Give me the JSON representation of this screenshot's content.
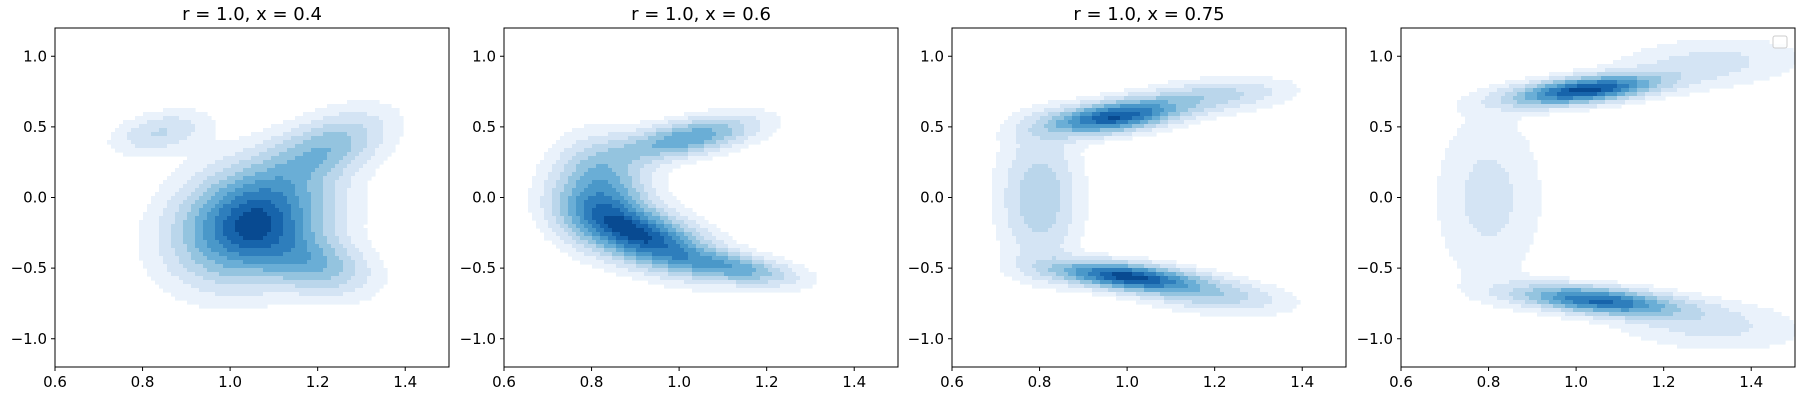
{
  "figure": {
    "colormap": [
      "#eaf2fb",
      "#d4e4f4",
      "#bad6eb",
      "#94c4df",
      "#6aaed6",
      "#4a98c9",
      "#2e7ebc",
      "#1764ab",
      "#084a91"
    ],
    "axis_color": "#000000"
  },
  "chart_data": [
    {
      "type": "heatmap",
      "subtype": "kde-contour",
      "title": "r = 1.0, x = 0.4",
      "xlim": [
        0.6,
        1.5
      ],
      "ylim": [
        -1.2,
        1.2
      ],
      "xticks": [
        0.6,
        0.8,
        1.0,
        1.2,
        1.4
      ],
      "xtick_labels": [
        "0.6",
        "0.8",
        "1.0",
        "1.2",
        "1.4"
      ],
      "yticks": [
        -1.0,
        -0.5,
        0.0,
        0.5,
        1.0
      ],
      "ytick_labels": [
        "−1.0",
        "−0.5",
        "0.0",
        "0.5",
        "1.0"
      ],
      "grid": false,
      "legend": false,
      "density_components": [
        {
          "x": 0.84,
          "y": 0.46,
          "sx": 0.07,
          "sy": 0.1,
          "corr": 0.35,
          "w": 0.25
        },
        {
          "x": 1.05,
          "y": -0.18,
          "sx": 0.11,
          "sy": 0.26,
          "corr": 0.2,
          "w": 1.0
        },
        {
          "x": 1.22,
          "y": 0.35,
          "sx": 0.09,
          "sy": 0.17,
          "corr": 0.5,
          "w": 0.42
        },
        {
          "x": 1.2,
          "y": -0.48,
          "sx": 0.08,
          "sy": 0.14,
          "corr": -0.3,
          "w": 0.4
        }
      ]
    },
    {
      "type": "heatmap",
      "subtype": "kde-contour",
      "title": "r = 1.0, x = 0.6",
      "xlim": [
        0.6,
        1.5
      ],
      "ylim": [
        -1.2,
        1.2
      ],
      "xticks": [
        0.6,
        0.8,
        1.0,
        1.2,
        1.4
      ],
      "xtick_labels": [
        "0.6",
        "0.8",
        "1.0",
        "1.2",
        "1.4"
      ],
      "yticks": [
        -1.0,
        -0.5,
        0.0,
        0.5,
        1.0
      ],
      "ytick_labels": [
        "−1.0",
        "−0.5",
        "0.0",
        "0.5",
        "1.0"
      ],
      "grid": false,
      "legend": false,
      "density_components": [
        {
          "x": 0.92,
          "y": -0.28,
          "sx": 0.1,
          "sy": 0.16,
          "corr": -0.55,
          "w": 1.0
        },
        {
          "x": 1.13,
          "y": -0.5,
          "sx": 0.09,
          "sy": 0.08,
          "corr": -0.5,
          "w": 0.55
        },
        {
          "x": 1.02,
          "y": 0.42,
          "sx": 0.1,
          "sy": 0.1,
          "corr": 0.55,
          "w": 0.65
        },
        {
          "x": 0.82,
          "y": 0.05,
          "sx": 0.07,
          "sy": 0.22,
          "corr": 0.0,
          "w": 0.65
        }
      ]
    },
    {
      "type": "heatmap",
      "subtype": "kde-contour",
      "title": "r = 1.0, x = 0.75",
      "xlim": [
        0.6,
        1.5
      ],
      "ylim": [
        -1.2,
        1.2
      ],
      "xticks": [
        0.6,
        0.8,
        1.0,
        1.2,
        1.4
      ],
      "xtick_labels": [
        "0.6",
        "0.8",
        "1.0",
        "1.2",
        "1.4"
      ],
      "yticks": [
        -1.0,
        -0.5,
        0.0,
        0.5,
        1.0
      ],
      "ytick_labels": [
        "−1.0",
        "−0.5",
        "0.0",
        "0.5",
        "1.0"
      ],
      "grid": false,
      "legend": false,
      "density_components": [
        {
          "x": 0.97,
          "y": 0.57,
          "sx": 0.1,
          "sy": 0.08,
          "corr": 0.45,
          "w": 1.0
        },
        {
          "x": 1.0,
          "y": -0.56,
          "sx": 0.11,
          "sy": 0.07,
          "corr": -0.45,
          "w": 1.05
        },
        {
          "x": 0.8,
          "y": 0.0,
          "sx": 0.06,
          "sy": 0.32,
          "corr": 0.0,
          "w": 0.35
        },
        {
          "x": 1.2,
          "y": 0.72,
          "sx": 0.11,
          "sy": 0.08,
          "corr": 0.3,
          "w": 0.3
        },
        {
          "x": 1.2,
          "y": -0.7,
          "sx": 0.11,
          "sy": 0.08,
          "corr": -0.3,
          "w": 0.3
        }
      ]
    },
    {
      "type": "heatmap",
      "subtype": "kde-contour",
      "title": "",
      "xlim": [
        0.6,
        1.5
      ],
      "ylim": [
        -1.2,
        1.2
      ],
      "xticks": [
        0.6,
        0.8,
        1.0,
        1.2,
        1.4
      ],
      "xtick_labels": [
        "0.6",
        "0.8",
        "1.0",
        "1.2",
        "1.4"
      ],
      "yticks": [
        -1.0,
        -0.5,
        0.0,
        0.5,
        1.0
      ],
      "ytick_labels": [
        "−1.0",
        "−0.5",
        "0.0",
        "0.5",
        "1.0"
      ],
      "grid": false,
      "legend": true,
      "legend_location": "upper right",
      "legend_entries": [],
      "density_components": [
        {
          "x": 1.02,
          "y": 0.76,
          "sx": 0.11,
          "sy": 0.07,
          "corr": 0.5,
          "w": 1.0
        },
        {
          "x": 1.05,
          "y": -0.73,
          "sx": 0.12,
          "sy": 0.07,
          "corr": -0.45,
          "w": 0.85
        },
        {
          "x": 0.8,
          "y": 0.0,
          "sx": 0.08,
          "sy": 0.4,
          "corr": 0.0,
          "w": 0.18
        },
        {
          "x": 1.3,
          "y": 0.95,
          "sx": 0.14,
          "sy": 0.12,
          "corr": 0.2,
          "w": 0.18
        },
        {
          "x": 1.3,
          "y": -0.9,
          "sx": 0.14,
          "sy": 0.12,
          "corr": -0.2,
          "w": 0.18
        }
      ]
    }
  ]
}
